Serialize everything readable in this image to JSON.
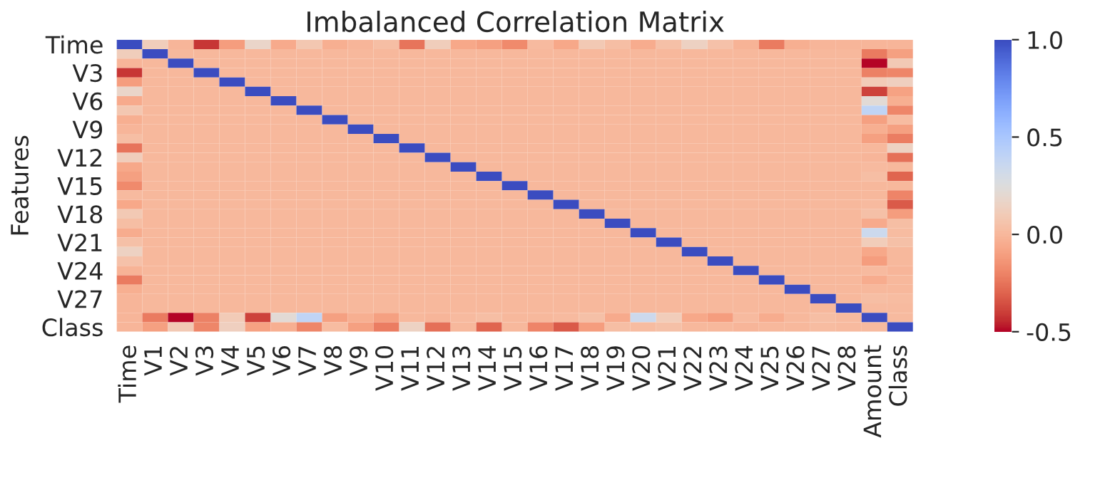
{
  "chart_data": {
    "type": "heatmap",
    "title": "Imbalanced Correlation Matrix",
    "ylabel": "Features",
    "categories": [
      "Time",
      "V1",
      "V2",
      "V3",
      "V4",
      "V5",
      "V6",
      "V7",
      "V8",
      "V9",
      "V10",
      "V11",
      "V12",
      "V13",
      "V14",
      "V15",
      "V16",
      "V17",
      "V18",
      "V19",
      "V20",
      "V21",
      "V22",
      "V23",
      "V24",
      "V25",
      "V26",
      "V27",
      "V28",
      "Amount",
      "Class"
    ],
    "y_categories": [
      "Time",
      null,
      null,
      "V3",
      null,
      null,
      "V6",
      null,
      null,
      "V9",
      null,
      null,
      "V12",
      null,
      null,
      "V15",
      null,
      null,
      "V18",
      null,
      null,
      "V21",
      null,
      null,
      "V24",
      null,
      null,
      "V27",
      null,
      null,
      "Class"
    ],
    "cells": [
      [
        1,
        0.12,
        -0.01,
        -0.42,
        -0.11,
        0.17,
        -0.06,
        0.08,
        -0.04,
        -0.01,
        0.03,
        -0.25,
        0.12,
        -0.07,
        -0.1,
        -0.18,
        0.01,
        -0.07,
        0.09,
        0.03,
        -0.05,
        0.04,
        0.14,
        0.05,
        -0.02,
        -0.23,
        -0.04,
        -0.01,
        -0.01,
        -0.01,
        -0.01
      ],
      [
        0.12,
        1,
        0,
        0,
        0,
        0,
        0,
        0,
        0,
        0,
        0,
        0,
        0,
        0,
        0,
        0,
        0,
        0,
        0,
        0,
        0,
        0,
        0,
        0,
        0,
        0,
        0,
        0,
        0,
        -0.23,
        -0.1
      ],
      [
        -0.01,
        0,
        1,
        0,
        0,
        0,
        0,
        0,
        0,
        0,
        0,
        0,
        0,
        0,
        0,
        0,
        0,
        0,
        0,
        0,
        0,
        0,
        0,
        0,
        0,
        0,
        0,
        0,
        0,
        -0.53,
        0.09
      ],
      [
        -0.42,
        0,
        0,
        1,
        0,
        0,
        0,
        0,
        0,
        0,
        0,
        0,
        0,
        0,
        0,
        0,
        0,
        0,
        0,
        0,
        0,
        0,
        0,
        0,
        0,
        0,
        0,
        0,
        0,
        -0.21,
        -0.19
      ],
      [
        -0.11,
        0,
        0,
        0,
        1,
        0,
        0,
        0,
        0,
        0,
        0,
        0,
        0,
        0,
        0,
        0,
        0,
        0,
        0,
        0,
        0,
        0,
        0,
        0,
        0,
        0,
        0,
        0,
        0,
        0.1,
        0.13
      ],
      [
        0.17,
        0,
        0,
        0,
        0,
        1,
        0,
        0,
        0,
        0,
        0,
        0,
        0,
        0,
        0,
        0,
        0,
        0,
        0,
        0,
        0,
        0,
        0,
        0,
        0,
        0,
        0,
        0,
        0,
        -0.39,
        -0.09
      ],
      [
        -0.06,
        0,
        0,
        0,
        0,
        0,
        1,
        0,
        0,
        0,
        0,
        0,
        0,
        0,
        0,
        0,
        0,
        0,
        0,
        0,
        0,
        0,
        0,
        0,
        0,
        0,
        0,
        0,
        0,
        0.22,
        -0.04
      ],
      [
        0.08,
        0,
        0,
        0,
        0,
        0,
        0,
        1,
        0,
        0,
        0,
        0,
        0,
        0,
        0,
        0,
        0,
        0,
        0,
        0,
        0,
        0,
        0,
        0,
        0,
        0,
        0,
        0,
        0,
        0.4,
        -0.19
      ],
      [
        -0.04,
        0,
        0,
        0,
        0,
        0,
        0,
        0,
        1,
        0,
        0,
        0,
        0,
        0,
        0,
        0,
        0,
        0,
        0,
        0,
        0,
        0,
        0,
        0,
        0,
        0,
        0,
        0,
        0,
        -0.1,
        0.02
      ],
      [
        -0.01,
        0,
        0,
        0,
        0,
        0,
        0,
        0,
        0,
        1,
        0,
        0,
        0,
        0,
        0,
        0,
        0,
        0,
        0,
        0,
        0,
        0,
        0,
        0,
        0,
        0,
        0,
        0,
        0,
        -0.04,
        -0.1
      ],
      [
        0.03,
        0,
        0,
        0,
        0,
        0,
        0,
        0,
        0,
        0,
        1,
        0,
        0,
        0,
        0,
        0,
        0,
        0,
        0,
        0,
        0,
        0,
        0,
        0,
        0,
        0,
        0,
        0,
        0,
        -0.1,
        -0.22
      ],
      [
        -0.25,
        0,
        0,
        0,
        0,
        0,
        0,
        0,
        0,
        0,
        0,
        1,
        0,
        0,
        0,
        0,
        0,
        0,
        0,
        0,
        0,
        0,
        0,
        0,
        0,
        0,
        0,
        0,
        0,
        0,
        0.15
      ],
      [
        0.12,
        0,
        0,
        0,
        0,
        0,
        0,
        0,
        0,
        0,
        0,
        0,
        1,
        0,
        0,
        0,
        0,
        0,
        0,
        0,
        0,
        0,
        0,
        0,
        0,
        0,
        0,
        0,
        0,
        -0.01,
        -0.26
      ],
      [
        -0.07,
        0,
        0,
        0,
        0,
        0,
        0,
        0,
        0,
        0,
        0,
        0,
        0,
        1,
        0,
        0,
        0,
        0,
        0,
        0,
        0,
        0,
        0,
        0,
        0,
        0,
        0,
        0,
        0,
        0.01,
        0
      ],
      [
        -0.1,
        0,
        0,
        0,
        0,
        0,
        0,
        0,
        0,
        0,
        0,
        0,
        0,
        0,
        1,
        0,
        0,
        0,
        0,
        0,
        0,
        0,
        0,
        0,
        0,
        0,
        0,
        0,
        0,
        0.03,
        -0.3
      ],
      [
        -0.18,
        0,
        0,
        0,
        0,
        0,
        0,
        0,
        0,
        0,
        0,
        0,
        0,
        0,
        0,
        1,
        0,
        0,
        0,
        0,
        0,
        0,
        0,
        0,
        0,
        0,
        0,
        0,
        0,
        0,
        0
      ],
      [
        0.01,
        0,
        0,
        0,
        0,
        0,
        0,
        0,
        0,
        0,
        0,
        0,
        0,
        0,
        0,
        0,
        1,
        0,
        0,
        0,
        0,
        0,
        0,
        0,
        0,
        0,
        0,
        0,
        0,
        0,
        -0.2
      ],
      [
        -0.07,
        0,
        0,
        0,
        0,
        0,
        0,
        0,
        0,
        0,
        0,
        0,
        0,
        0,
        0,
        0,
        0,
        1,
        0,
        0,
        0,
        0,
        0,
        0,
        0,
        0,
        0,
        0,
        0,
        0.01,
        -0.33
      ],
      [
        0.09,
        0,
        0,
        0,
        0,
        0,
        0,
        0,
        0,
        0,
        0,
        0,
        0,
        0,
        0,
        0,
        0,
        0,
        1,
        0,
        0,
        0,
        0,
        0,
        0,
        0,
        0,
        0,
        0,
        0.04,
        -0.11
      ],
      [
        0.03,
        0,
        0,
        0,
        0,
        0,
        0,
        0,
        0,
        0,
        0,
        0,
        0,
        0,
        0,
        0,
        0,
        0,
        0,
        1,
        0,
        0,
        0,
        0,
        0,
        0,
        0,
        0,
        0,
        -0.06,
        0.03
      ],
      [
        -0.05,
        0,
        0,
        0,
        0,
        0,
        0,
        0,
        0,
        0,
        0,
        0,
        0,
        0,
        0,
        0,
        0,
        0,
        0,
        0,
        1,
        0,
        0,
        0,
        0,
        0,
        0,
        0,
        0,
        0.34,
        0.02
      ],
      [
        0.04,
        0,
        0,
        0,
        0,
        0,
        0,
        0,
        0,
        0,
        0,
        0,
        0,
        0,
        0,
        0,
        0,
        0,
        0,
        0,
        0,
        1,
        0,
        0,
        0,
        0,
        0,
        0,
        0,
        0.11,
        0.04
      ],
      [
        0.14,
        0,
        0,
        0,
        0,
        0,
        0,
        0,
        0,
        0,
        0,
        0,
        0,
        0,
        0,
        0,
        0,
        0,
        0,
        0,
        0,
        0,
        1,
        0,
        0,
        0,
        0,
        0,
        0,
        -0.07,
        0
      ],
      [
        0.05,
        0,
        0,
        0,
        0,
        0,
        0,
        0,
        0,
        0,
        0,
        0,
        0,
        0,
        0,
        0,
        0,
        0,
        0,
        0,
        0,
        0,
        0,
        1,
        0,
        0,
        0,
        0,
        0,
        -0.11,
        0
      ],
      [
        -0.02,
        0,
        0,
        0,
        0,
        0,
        0,
        0,
        0,
        0,
        0,
        0,
        0,
        0,
        0,
        0,
        0,
        0,
        0,
        0,
        0,
        0,
        0,
        0,
        1,
        0,
        0,
        0,
        0,
        0.01,
        -0.01
      ],
      [
        -0.23,
        0,
        0,
        0,
        0,
        0,
        0,
        0,
        0,
        0,
        0,
        0,
        0,
        0,
        0,
        0,
        0,
        0,
        0,
        0,
        0,
        0,
        0,
        0,
        0,
        1,
        0,
        0,
        0,
        -0.05,
        0
      ],
      [
        -0.04,
        0,
        0,
        0,
        0,
        0,
        0,
        0,
        0,
        0,
        0,
        0,
        0,
        0,
        0,
        0,
        0,
        0,
        0,
        0,
        0,
        0,
        0,
        0,
        0,
        0,
        1,
        0,
        0,
        0,
        0
      ],
      [
        -0.01,
        0,
        0,
        0,
        0,
        0,
        0,
        0,
        0,
        0,
        0,
        0,
        0,
        0,
        0,
        0,
        0,
        0,
        0,
        0,
        0,
        0,
        0,
        0,
        0,
        0,
        0,
        1,
        0,
        0.03,
        0.02
      ],
      [
        -0.01,
        0,
        0,
        0,
        0,
        0,
        0,
        0,
        0,
        0,
        0,
        0,
        0,
        0,
        0,
        0,
        0,
        0,
        0,
        0,
        0,
        0,
        0,
        0,
        0,
        0,
        0,
        0,
        1,
        0.01,
        0.01
      ],
      [
        -0.01,
        -0.23,
        -0.53,
        -0.21,
        0.1,
        -0.39,
        0.22,
        0.4,
        -0.1,
        -0.04,
        -0.1,
        0,
        -0.01,
        0.01,
        0.03,
        0,
        0,
        0.01,
        0.04,
        -0.06,
        0.34,
        0.11,
        -0.07,
        -0.11,
        0.01,
        -0.05,
        0,
        0.03,
        0.01,
        1,
        0.01
      ],
      [
        -0.01,
        -0.1,
        0.09,
        -0.19,
        0.13,
        -0.09,
        -0.04,
        -0.19,
        0.02,
        -0.1,
        -0.22,
        0.15,
        -0.26,
        0,
        -0.3,
        0,
        -0.2,
        -0.33,
        -0.11,
        0.03,
        0.02,
        0.04,
        0,
        0,
        -0.01,
        0,
        0,
        0.02,
        0.01,
        0.01,
        1
      ]
    ],
    "clim": [
      -0.5,
      1
    ],
    "cticks": [
      -0.5,
      {
        "value": 0,
        "label": "0.0"
      },
      0.5,
      {
        "value": 1,
        "label": "1.0"
      }
    ]
  }
}
